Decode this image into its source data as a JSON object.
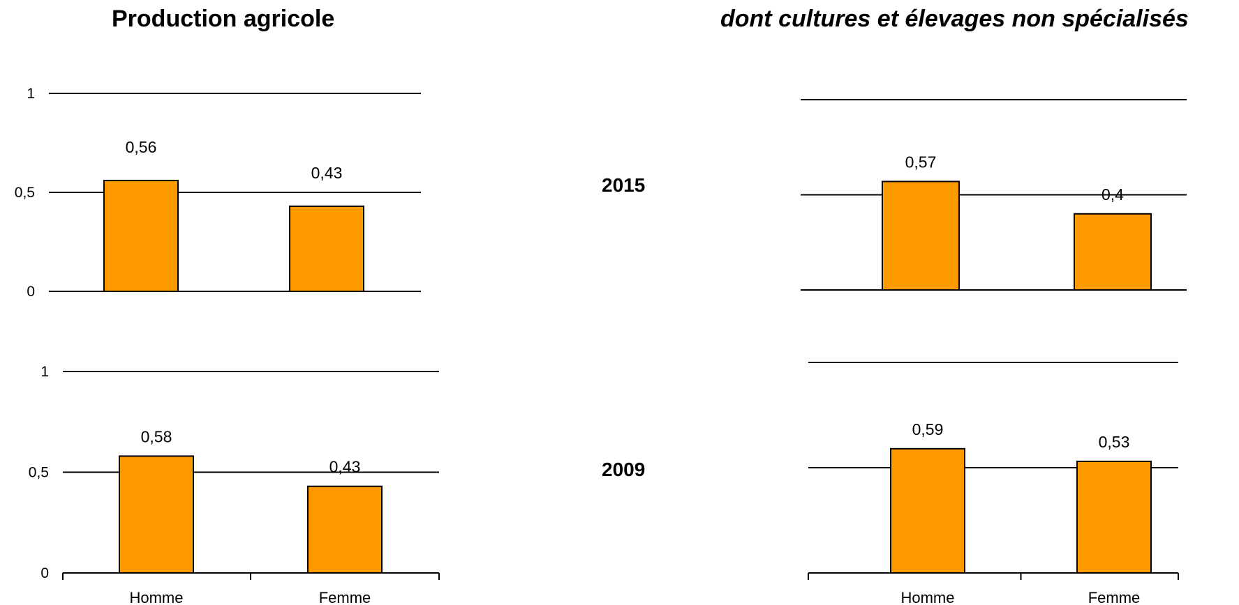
{
  "titles": {
    "left": "Production agricole",
    "right": "dont cultures et élevages non spécialisés"
  },
  "row_labels": [
    "2015",
    "2009"
  ],
  "colors": {
    "bar_fill": "#FF9900",
    "bar_stroke": "#000000",
    "grid": "#000000"
  },
  "chart_data": [
    {
      "type": "bar",
      "title": "Production agricole",
      "year": "2015",
      "categories": [
        "Homme",
        "Femme"
      ],
      "values": [
        0.56,
        0.43
      ],
      "data_labels": [
        "0,56",
        "0,43"
      ],
      "ylim": [
        0,
        1
      ],
      "yticks": [
        0,
        0.5,
        1
      ],
      "ytick_labels": [
        "0",
        "0,5",
        "1"
      ],
      "show_x_labels": false
    },
    {
      "type": "bar",
      "title": "dont cultures et élevages non spécialisés",
      "year": "2015",
      "categories": [
        "Homme",
        "Femme"
      ],
      "values": [
        0.57,
        0.4
      ],
      "data_labels": [
        "0,57",
        "0,4"
      ],
      "ylim": [
        0,
        1
      ],
      "yticks": [
        0,
        0.5,
        1
      ],
      "ytick_labels": [],
      "show_x_labels": false
    },
    {
      "type": "bar",
      "title": "Production agricole",
      "year": "2009",
      "categories": [
        "Homme",
        "Femme"
      ],
      "values": [
        0.58,
        0.43
      ],
      "data_labels": [
        "0,58",
        "0,43"
      ],
      "ylim": [
        0,
        1
      ],
      "yticks": [
        0,
        0.5,
        1
      ],
      "ytick_labels": [
        "0",
        "0,5",
        "1"
      ],
      "show_x_labels": true
    },
    {
      "type": "bar",
      "title": "dont cultures et élevages non spécialisés",
      "year": "2009",
      "categories": [
        "Homme",
        "Femme"
      ],
      "values": [
        0.59,
        0.53
      ],
      "data_labels": [
        "0,59",
        "0,53"
      ],
      "ylim": [
        0,
        1
      ],
      "yticks": [
        0,
        0.5,
        1
      ],
      "ytick_labels": [],
      "show_x_labels": true
    }
  ]
}
